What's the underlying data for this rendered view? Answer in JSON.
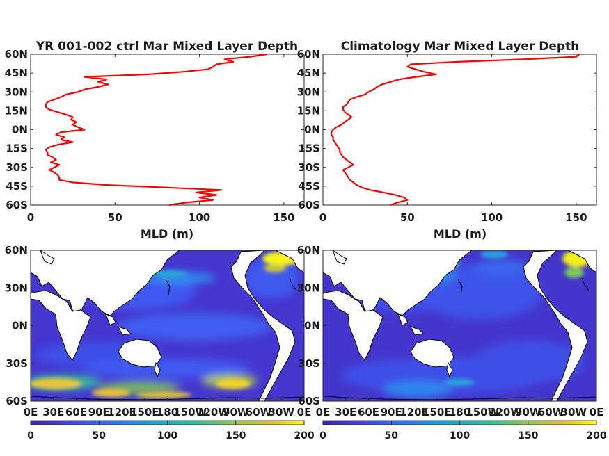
{
  "figure": {
    "panels": [
      {
        "title": "YR 001-002 ctrl Mar Mixed Layer Depth"
      },
      {
        "title": "Climatology Mar Mixed Layer Depth"
      }
    ]
  },
  "chart_data": [
    {
      "type": "line",
      "title": "YR 001-002 ctrl Mar Mixed Layer Depth",
      "xlabel": "MLD (m)",
      "ylabel": "",
      "xlim": [
        0,
        162
      ],
      "ylim": [
        -60,
        60
      ],
      "x_ticks": [
        "0",
        "50",
        "100",
        "150"
      ],
      "y_ticks": [
        "60S",
        "45S",
        "30S",
        "15S",
        "0N",
        "15N",
        "30N",
        "45N",
        "60N"
      ],
      "line_color": "#ff0000",
      "series": [
        {
          "lat": [
            -60,
            -58,
            -56,
            -54,
            -52,
            -50,
            -48,
            -46,
            -44,
            -42,
            -40,
            -38,
            -36,
            -34,
            -32,
            -30,
            -28,
            -26,
            -24,
            -22,
            -20,
            -18,
            -16,
            -14,
            -12,
            -10,
            -8,
            -6,
            -4,
            -2,
            0,
            2,
            4,
            6,
            8,
            10,
            12,
            14,
            16,
            18,
            20,
            22,
            24,
            26,
            28,
            30,
            32,
            34,
            36,
            38,
            40,
            42,
            44,
            46,
            48,
            50,
            52,
            54,
            56,
            58,
            60
          ],
          "mld": [
            82,
            92,
            108,
            100,
            110,
            98,
            113,
            80,
            45,
            25,
            17,
            17,
            16,
            14,
            11,
            14,
            17,
            12,
            15,
            13,
            10,
            10,
            9,
            11,
            16,
            25,
            18,
            20,
            15,
            18,
            32,
            28,
            25,
            27,
            24,
            25,
            21,
            16,
            11,
            9,
            9,
            10,
            14,
            18,
            21,
            28,
            32,
            40,
            46,
            40,
            45,
            32,
            70,
            90,
            105,
            108,
            110,
            120,
            115,
            130,
            140
          ]
        }
      ]
    },
    {
      "type": "line",
      "title": "Climatology Mar Mixed Layer Depth",
      "xlabel": "MLD (m)",
      "ylabel": "",
      "xlim": [
        0,
        162
      ],
      "ylim": [
        -60,
        60
      ],
      "x_ticks": [
        "0",
        "50",
        "100",
        "150"
      ],
      "y_ticks": [
        "60S",
        "45S",
        "30S",
        "15S",
        "0N",
        "15N",
        "30N",
        "45N",
        "60N"
      ],
      "line_color": "#ff0000",
      "series": [
        {
          "lat": [
            -60,
            -58,
            -56,
            -54,
            -52,
            -50,
            -48,
            -46,
            -44,
            -42,
            -40,
            -38,
            -36,
            -34,
            -32,
            -30,
            -28,
            -26,
            -24,
            -22,
            -20,
            -18,
            -16,
            -14,
            -12,
            -10,
            -8,
            -6,
            -4,
            -2,
            0,
            2,
            4,
            6,
            8,
            10,
            12,
            14,
            16,
            18,
            20,
            22,
            24,
            26,
            28,
            30,
            32,
            34,
            36,
            38,
            40,
            42,
            44,
            46,
            48,
            50,
            52,
            54,
            56,
            58,
            60
          ],
          "mld": [
            40,
            44,
            50,
            48,
            43,
            36,
            28,
            23,
            20,
            18,
            16,
            15,
            14,
            13,
            12,
            15,
            18,
            16,
            14,
            12,
            11,
            10,
            10,
            9,
            8,
            7,
            6,
            6,
            5,
            5,
            6,
            8,
            11,
            13,
            15,
            17,
            15,
            13,
            12,
            12,
            14,
            15,
            16,
            20,
            25,
            27,
            30,
            32,
            35,
            40,
            45,
            55,
            67,
            60,
            55,
            50,
            52,
            80,
            120,
            150,
            152
          ]
        }
      ]
    },
    {
      "type": "heatmap",
      "title": "",
      "description_colorbar": "",
      "x_ticks": [
        "0E",
        "30E",
        "60E",
        "90E",
        "120E",
        "150E",
        "180",
        "150W",
        "120W",
        "90W",
        "60W",
        "30W",
        "0E"
      ],
      "y_ticks": [
        "60S",
        "30S",
        "0N",
        "30N",
        "60N"
      ],
      "colorbar_ticks": [
        "0",
        "50",
        "100",
        "150",
        "200"
      ],
      "colorbar_range": [
        0,
        200
      ]
    },
    {
      "type": "heatmap",
      "title": "",
      "x_ticks": [
        "0E",
        "30E",
        "60E",
        "90E",
        "120E",
        "150E",
        "180",
        "150W",
        "120W",
        "90W",
        "60W",
        "30W",
        "0E"
      ],
      "y_ticks": [
        "60S",
        "30S",
        "0N",
        "30N",
        "60N"
      ],
      "colorbar_ticks": [
        "0",
        "50",
        "100",
        "150",
        "200"
      ],
      "colorbar_range": [
        0,
        200
      ]
    }
  ]
}
